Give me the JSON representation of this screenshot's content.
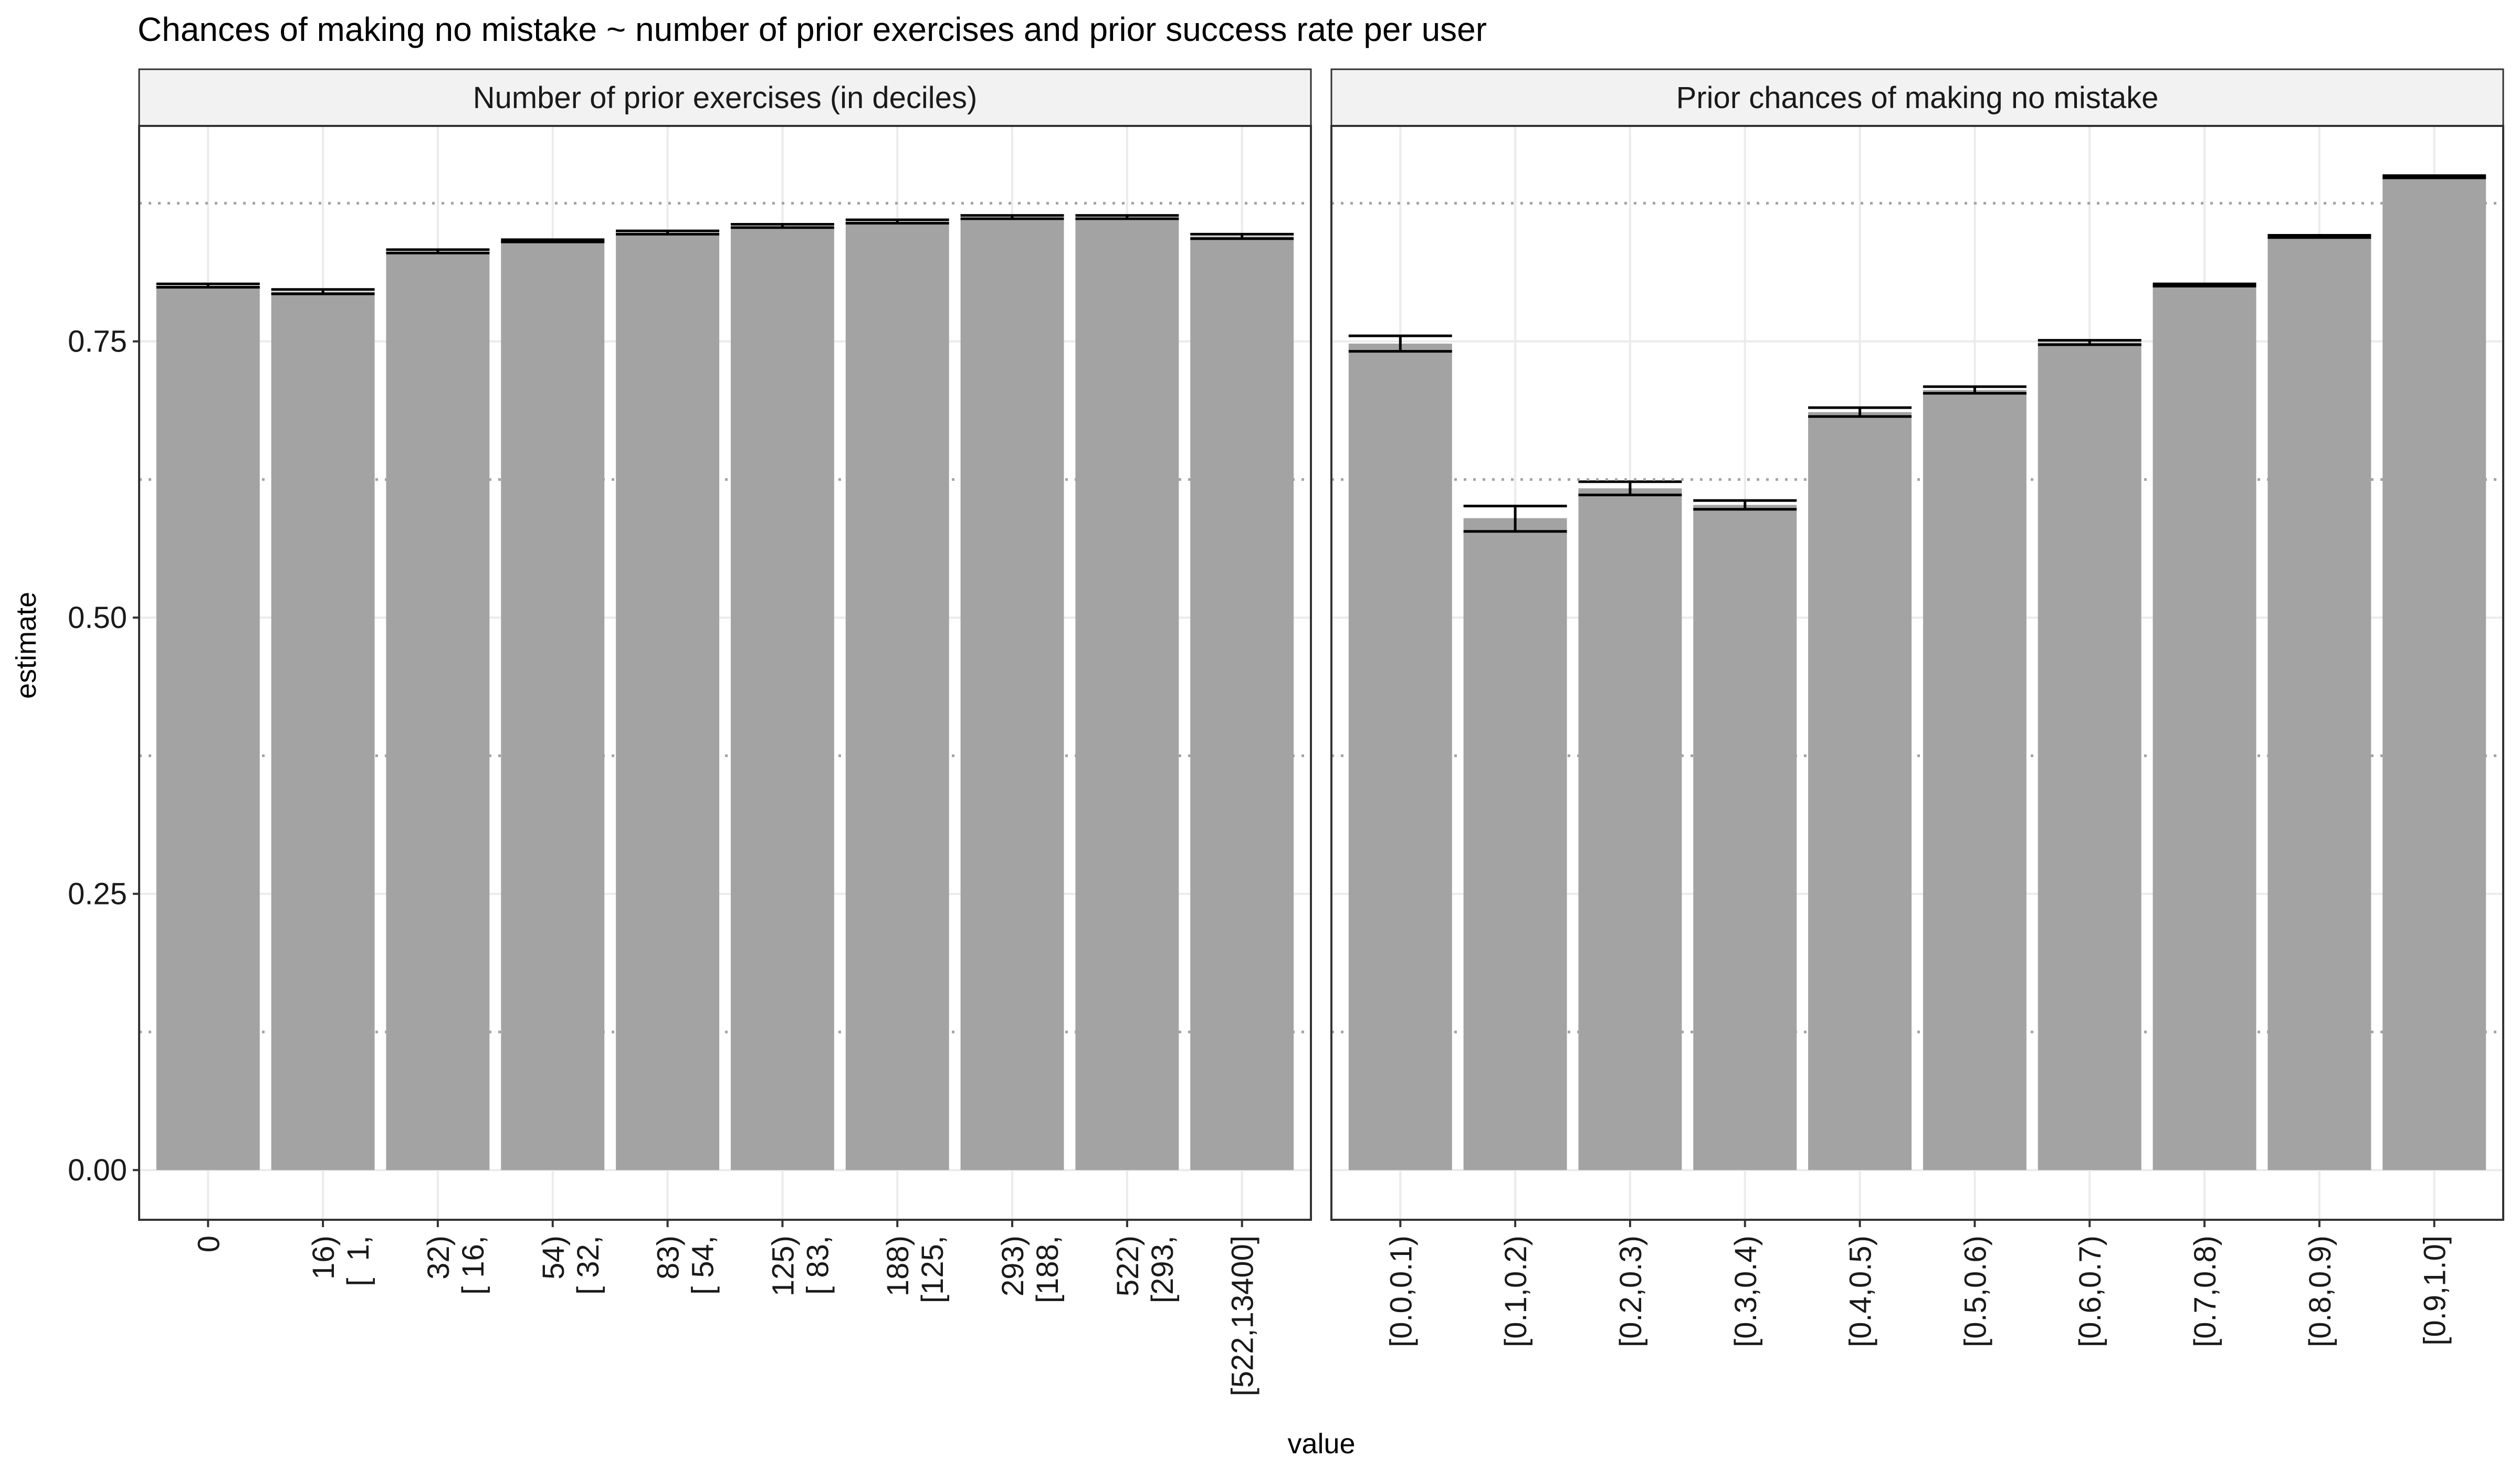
{
  "chart_data": {
    "type": "bar",
    "title": "Chances of making no mistake ~ number of prior exercises and prior success rate per user",
    "xlabel": "value",
    "ylabel": "estimate",
    "ylim": [
      -0.045,
      0.945
    ],
    "yticks": [
      0.0,
      0.25,
      0.5,
      0.75
    ],
    "ytick_labels": [
      "0.00",
      "0.25",
      "0.50",
      "0.75"
    ],
    "y_minor_gridlines": [
      0.125,
      0.375,
      0.625,
      0.875
    ],
    "grid": true,
    "bar_color": "#a3a3a3",
    "errorbar_color": "#000000",
    "dotted_line_color": "#a3a3a3",
    "panels": [
      {
        "strip": "Number of prior exercises (in deciles)",
        "categories": [
          "0",
          "[  1,   16)",
          "[ 16,   32)",
          "[ 32,   54)",
          "[ 54,   83)",
          "[ 83,  125)",
          "[125,  188)",
          "[188,  293)",
          "[293,  522)",
          "[522,13400]"
        ],
        "tick_lines": [
          [
            "0"
          ],
          [
            "16)",
            "[  1,"
          ],
          [
            "32)",
            "[ 16,"
          ],
          [
            "54)",
            "[ 32,"
          ],
          [
            "83)",
            "[ 54,"
          ],
          [
            "125)",
            "[ 83,"
          ],
          [
            "188)",
            "[125,"
          ],
          [
            "293)",
            "[188,"
          ],
          [
            "522)",
            "[293,"
          ],
          [
            "[522,13400]"
          ]
        ],
        "values": [
          0.8,
          0.795,
          0.831,
          0.841,
          0.848,
          0.854,
          0.858,
          0.862,
          0.862,
          0.845
        ],
        "lower": [
          0.799,
          0.793,
          0.83,
          0.84,
          0.847,
          0.853,
          0.857,
          0.861,
          0.861,
          0.843
        ],
        "upper": [
          0.802,
          0.797,
          0.833,
          0.842,
          0.85,
          0.856,
          0.86,
          0.864,
          0.864,
          0.847
        ]
      },
      {
        "strip": "Prior chances of making no mistake",
        "categories": [
          "[0.0,0.1)",
          "[0.1,0.2)",
          "[0.2,0.3)",
          "[0.3,0.4)",
          "[0.4,0.5)",
          "[0.5,0.6)",
          "[0.6,0.7)",
          "[0.7,0.8)",
          "[0.8,0.9)",
          "[0.9,1.0]"
        ],
        "tick_lines": [
          [
            "[0.0,0.1)"
          ],
          [
            "[0.1,0.2)"
          ],
          [
            "[0.2,0.3)"
          ],
          [
            "[0.3,0.4)"
          ],
          [
            "[0.4,0.5)"
          ],
          [
            "[0.5,0.6)"
          ],
          [
            "[0.6,0.7)"
          ],
          [
            "[0.7,0.8)"
          ],
          [
            "[0.8,0.9)"
          ],
          [
            "[0.9,1.0]"
          ]
        ],
        "values": [
          0.748,
          0.59,
          0.617,
          0.602,
          0.686,
          0.706,
          0.749,
          0.801,
          0.845,
          0.899
        ],
        "lower": [
          0.741,
          0.578,
          0.611,
          0.598,
          0.682,
          0.703,
          0.747,
          0.8,
          0.844,
          0.898
        ],
        "upper": [
          0.755,
          0.601,
          0.623,
          0.606,
          0.69,
          0.709,
          0.751,
          0.802,
          0.846,
          0.9
        ]
      }
    ]
  }
}
